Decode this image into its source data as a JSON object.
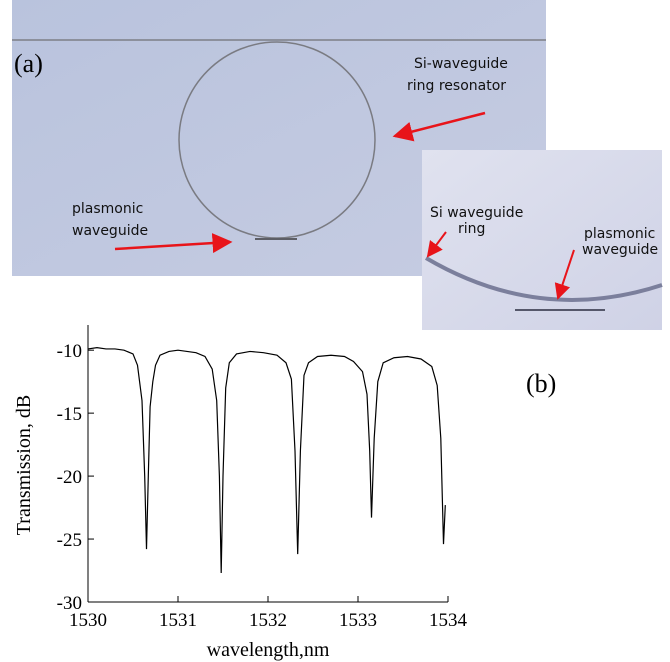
{
  "figure": {
    "panel_a": "(a)",
    "panel_b": "(b)",
    "annotations": {
      "ring_resonator": [
        "Si-waveguide",
        "ring resonator"
      ],
      "plasmonic_waveguide": [
        "plasmonic",
        "waveguide"
      ]
    },
    "inset": {
      "ring": [
        "Si waveguide",
        "ring"
      ],
      "plasmonic": [
        "plasmonic",
        "waveguide"
      ]
    }
  },
  "chart_data": {
    "type": "line",
    "xlabel": "wavelength,nm",
    "ylabel": "Transmission, dB",
    "color": "#000000",
    "xlim": [
      1530,
      1534
    ],
    "ylim": [
      -30,
      -8
    ],
    "xticks": [
      1530,
      1531,
      1532,
      1533,
      1534
    ],
    "yticks": [
      -30,
      -25,
      -20,
      -15,
      -10
    ],
    "x": [
      1530.0,
      1530.1,
      1530.2,
      1530.3,
      1530.4,
      1530.5,
      1530.55,
      1530.6,
      1530.63,
      1530.65,
      1530.67,
      1530.69,
      1530.72,
      1530.75,
      1530.8,
      1530.9,
      1531.0,
      1531.1,
      1531.2,
      1531.3,
      1531.38,
      1531.43,
      1531.46,
      1531.48,
      1531.5,
      1531.53,
      1531.57,
      1531.65,
      1531.8,
      1531.95,
      1532.1,
      1532.2,
      1532.26,
      1532.3,
      1532.33,
      1532.36,
      1532.4,
      1532.45,
      1532.55,
      1532.7,
      1532.85,
      1532.95,
      1533.05,
      1533.1,
      1533.13,
      1533.15,
      1533.18,
      1533.22,
      1533.28,
      1533.4,
      1533.55,
      1533.7,
      1533.82,
      1533.88,
      1533.92,
      1533.95,
      1533.97
    ],
    "values": [
      -9.9,
      -9.8,
      -9.9,
      -9.9,
      -10.0,
      -10.3,
      -11.2,
      -14,
      -20,
      -25.8,
      -20,
      -14.5,
      -12.5,
      -11.2,
      -10.4,
      -10.1,
      -10.0,
      -10.1,
      -10.2,
      -10.5,
      -11.5,
      -14,
      -20,
      -27.7,
      -20,
      -13,
      -11,
      -10.3,
      -10.1,
      -10.2,
      -10.4,
      -11.0,
      -12.3,
      -18,
      -26.2,
      -18,
      -12,
      -11,
      -10.5,
      -10.4,
      -10.5,
      -10.9,
      -11.7,
      -13.5,
      -18,
      -23.3,
      -17,
      -12.5,
      -11,
      -10.6,
      -10.5,
      -10.7,
      -11.3,
      -12.8,
      -17,
      -25.4,
      -22.3
    ]
  }
}
